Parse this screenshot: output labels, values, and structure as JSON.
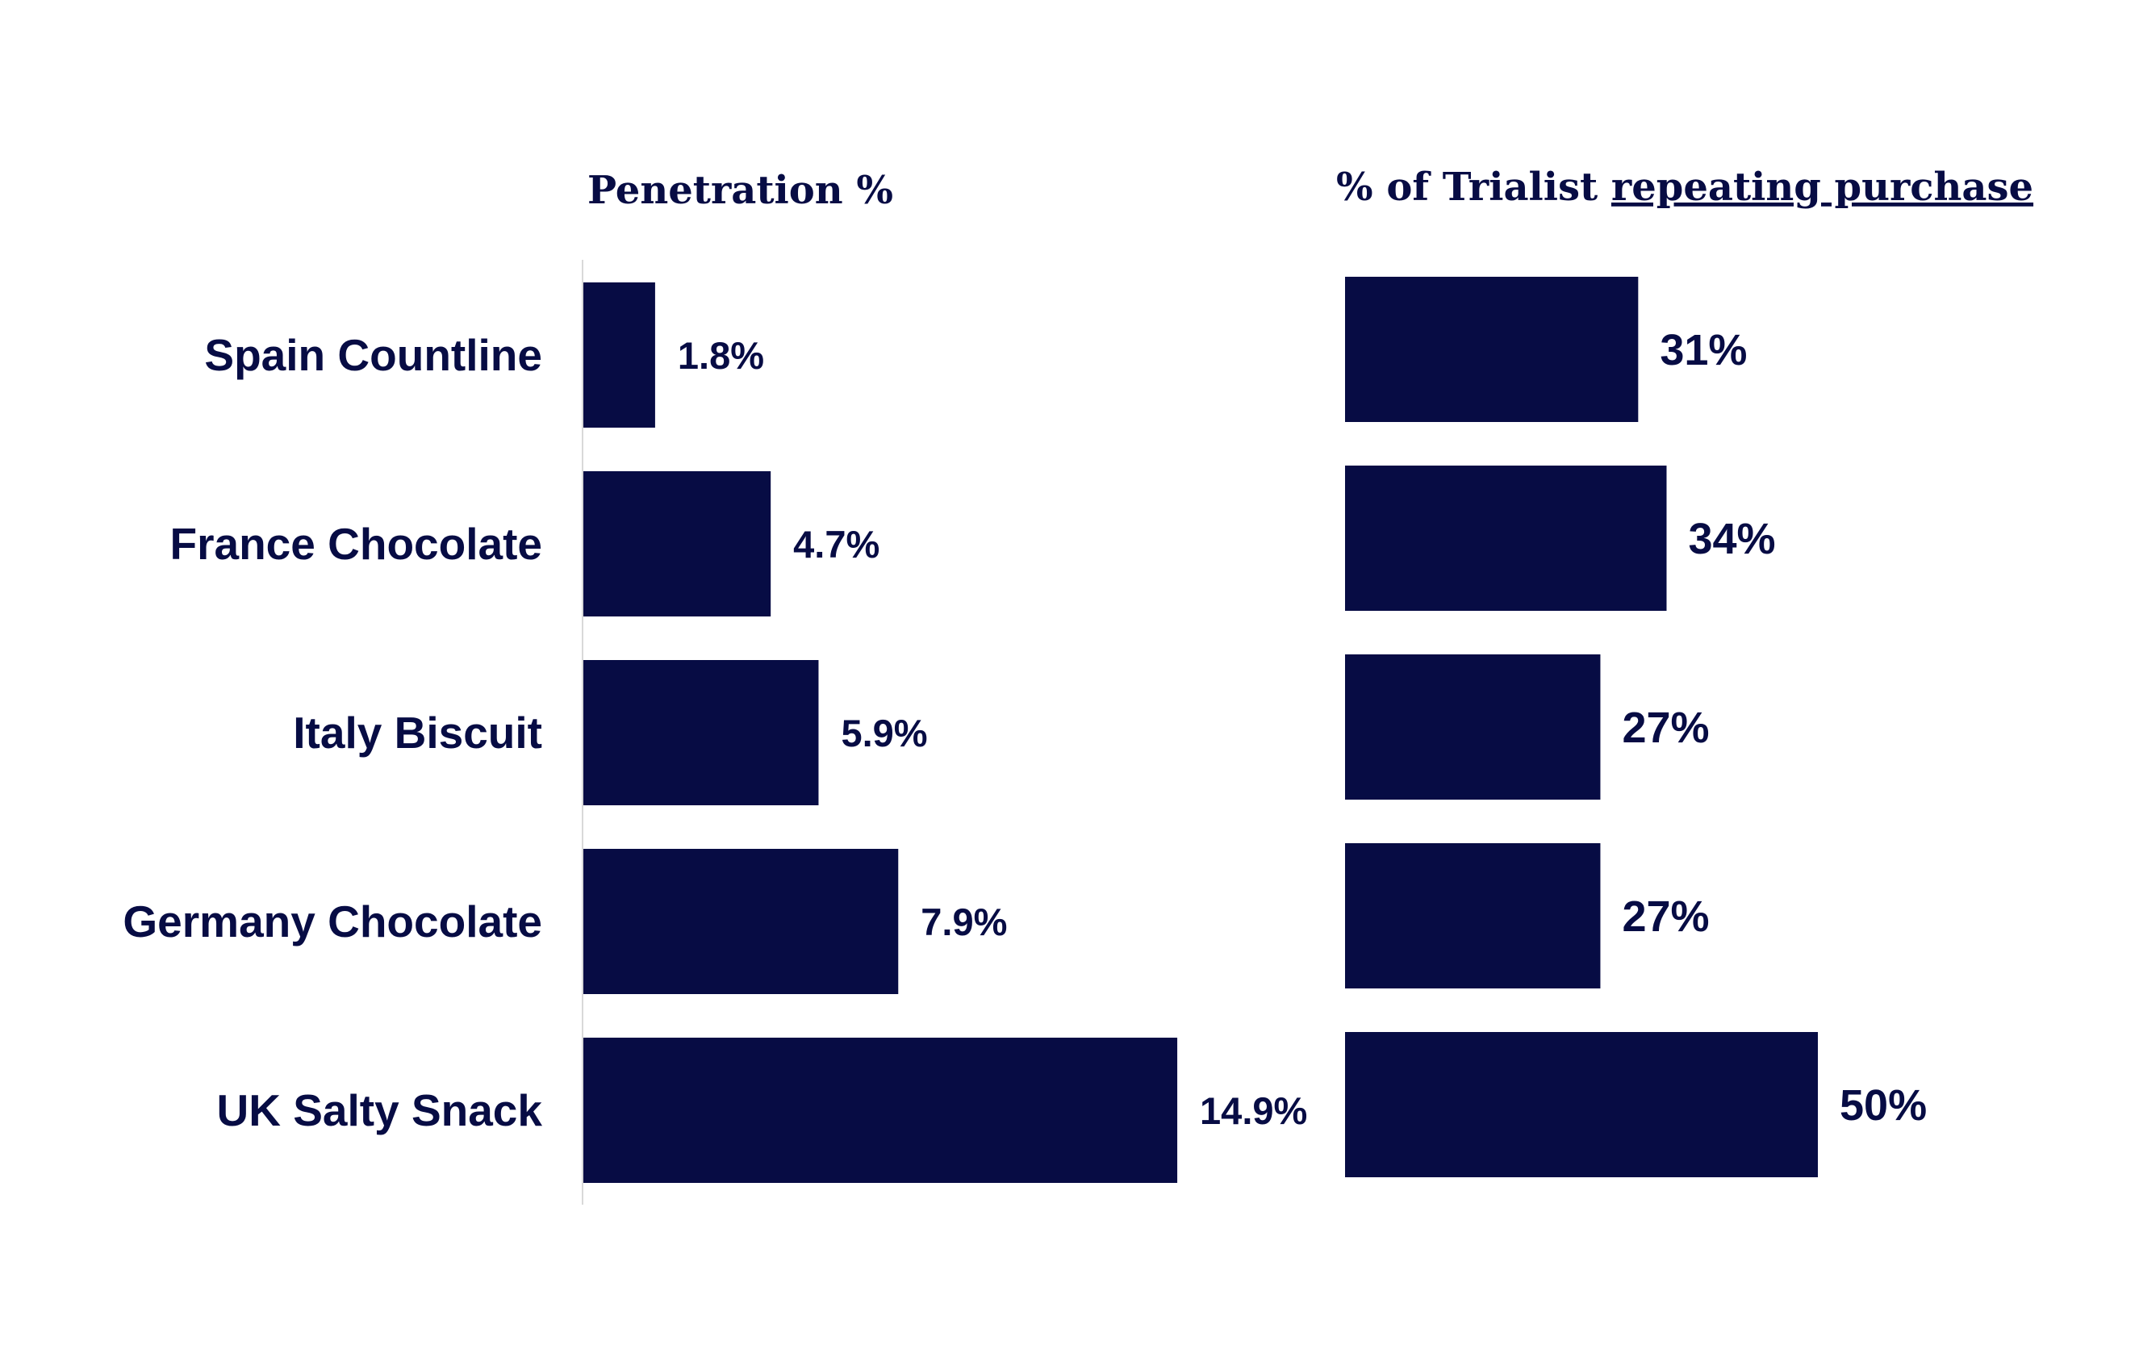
{
  "colors": {
    "bar": "#070c44",
    "text": "#070c44",
    "axis": "#d9d9d9"
  },
  "chart_data": [
    {
      "type": "bar",
      "orientation": "horizontal",
      "title": "Penetration %",
      "categories": [
        "Spain Countline",
        "France Chocolate",
        "Italy Biscuit",
        "Germany Chocolate",
        "UK Salty Snack"
      ],
      "values": [
        1.8,
        4.7,
        5.9,
        7.9,
        14.9
      ],
      "value_labels": [
        "1.8%",
        "4.7%",
        "5.9%",
        "7.9%",
        "14.9%"
      ],
      "xlim": [
        0,
        16
      ],
      "grid": false,
      "legend": "none"
    },
    {
      "type": "bar",
      "orientation": "horizontal",
      "title": "% of Trialist repeating purchase",
      "title_plain": "% of Trialist ",
      "title_underlined": "repeating purchase",
      "categories": [
        "Spain Countline",
        "France Chocolate",
        "Italy Biscuit",
        "Germany Chocolate",
        "UK Salty Snack"
      ],
      "values": [
        31,
        34,
        27,
        27,
        50
      ],
      "value_labels": [
        "31%",
        "34%",
        "27%",
        "27%",
        "50%"
      ],
      "xlim": [
        0,
        60
      ],
      "grid": false,
      "legend": "none"
    }
  ]
}
